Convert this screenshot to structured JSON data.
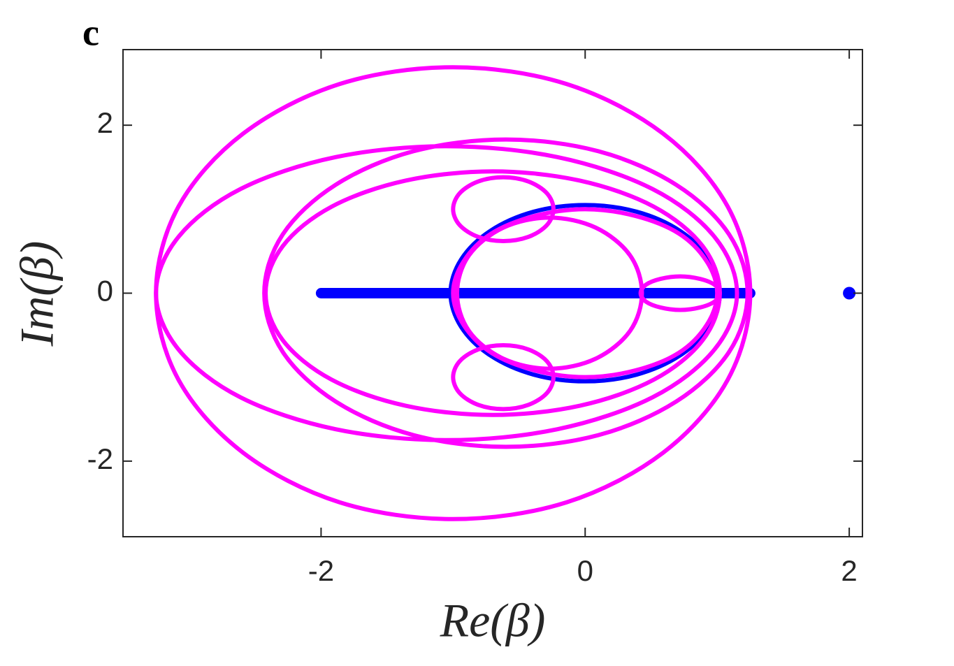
{
  "chart_data": {
    "type": "line",
    "panel_label": "c",
    "x_label": "Re(β)",
    "y_label": "Im(β)",
    "xlim": [
      -3.5,
      2.1
    ],
    "ylim": [
      -2.9,
      2.9
    ],
    "xticks": [
      -2,
      0,
      2
    ],
    "yticks": [
      -2,
      0,
      2
    ],
    "series": [
      {
        "color": "#0000ff",
        "mode": "line",
        "x": [
          -2,
          1.25
        ],
        "values": [
          0,
          0
        ]
      },
      {
        "color": "#0000ff",
        "mode": "line",
        "closed": true,
        "x": [
          1.02,
          0.94,
          0.72,
          0.39,
          0,
          -0.39,
          -0.72,
          -0.94,
          -1.02,
          -0.94,
          -0.72,
          -0.39,
          0,
          0.39,
          0.72,
          0.94
        ],
        "values": [
          0,
          0.4,
          0.74,
          0.97,
          1.05,
          0.97,
          0.74,
          0.4,
          0,
          -0.4,
          -0.74,
          -0.97,
          -1.05,
          -0.97,
          -0.74,
          -0.4
        ]
      },
      {
        "color": "#0000ff",
        "mode": "markers",
        "x": [
          2
        ],
        "values": [
          0
        ]
      },
      {
        "color": "#ff00ff",
        "mode": "line",
        "closed": true,
        "x": [
          1.25,
          1.08,
          0.59,
          -0.14,
          -1,
          -1.86,
          -2.59,
          -3.08,
          -3.25,
          -3.08,
          -2.59,
          -1.86,
          -1,
          -0.14,
          0.59,
          1.08
        ],
        "values": [
          0,
          1.03,
          1.9,
          2.49,
          2.69,
          2.49,
          1.9,
          1.03,
          0,
          -1.03,
          -1.9,
          -2.49,
          -2.69,
          -2.49,
          -1.9,
          -1.03
        ]
      },
      {
        "color": "#ff00ff",
        "mode": "line",
        "closed": true,
        "x": [
          1.15,
          0.98,
          0.51,
          -0.21,
          -1.05,
          -1.89,
          -2.61,
          -3.08,
          -3.25,
          -3.08,
          -2.61,
          -1.89,
          -1.05,
          -0.21,
          0.51,
          0.98
        ],
        "values": [
          0,
          0.67,
          1.24,
          1.62,
          1.75,
          1.62,
          1.24,
          0.67,
          0,
          -0.67,
          -1.24,
          -1.62,
          -1.75,
          -1.62,
          -1.24,
          -0.67
        ]
      },
      {
        "color": "#ff00ff",
        "mode": "line",
        "closed": true,
        "x": [
          1.23,
          1.09,
          0.69,
          0.1,
          -0.6,
          -1.3,
          -1.89,
          -2.29,
          -2.43,
          -2.29,
          -1.89,
          -1.3,
          -0.6,
          0.1,
          0.69,
          1.09
        ],
        "values": [
          0,
          0.7,
          1.29,
          1.69,
          1.83,
          1.69,
          1.29,
          0.7,
          0,
          -0.7,
          -1.29,
          -1.69,
          -1.83,
          -1.69,
          -1.29,
          -0.7
        ]
      },
      {
        "color": "#ff00ff",
        "mode": "line",
        "closed": true,
        "x": [
          1.02,
          0.89,
          0.52,
          -0.04,
          -0.7,
          -1.36,
          -1.92,
          -2.29,
          -2.42,
          -2.29,
          -1.92,
          -1.36,
          -0.7,
          -0.04,
          0.52,
          0.89
        ],
        "values": [
          0,
          0.56,
          1.03,
          1.34,
          1.45,
          1.34,
          1.03,
          0.56,
          0,
          -0.56,
          -1.03,
          -1.34,
          -1.45,
          -1.34,
          -1.03,
          -0.56
        ]
      },
      {
        "color": "#ff00ff",
        "mode": "line",
        "closed": true,
        "x": [
          1,
          0.92,
          0.71,
          0.38,
          0,
          -0.38,
          -0.71,
          -0.92,
          -1,
          -0.92,
          -0.71,
          -0.38,
          0,
          0.38,
          0.71,
          0.92
        ],
        "values": [
          0,
          0.38,
          0.71,
          0.92,
          1,
          0.92,
          0.71,
          0.38,
          0,
          -0.38,
          -0.71,
          -0.92,
          -1,
          -0.92,
          -0.71,
          -0.38
        ]
      },
      {
        "color": "#ff00ff",
        "mode": "line",
        "closed": true,
        "x": [
          0.43,
          0.34,
          0.08,
          -0.27,
          -0.62,
          -0.88,
          -0.97,
          -0.88,
          -0.62,
          -0.27,
          0.08,
          0.34
        ],
        "values": [
          0,
          0.45,
          0.78,
          0.9,
          0.78,
          0.45,
          0,
          -0.45,
          -0.78,
          -0.9,
          -0.78,
          -0.45
        ]
      },
      {
        "color": "#ff00ff",
        "mode": "line",
        "closed": true,
        "x": [
          -0.24,
          -0.29,
          -0.43,
          -0.62,
          -0.81,
          -0.95,
          -1.0,
          -0.95,
          -0.81,
          -0.62,
          -0.43,
          -0.29
        ],
        "values": [
          1.0,
          1.19,
          1.33,
          1.38,
          1.33,
          1.19,
          1.0,
          0.81,
          0.67,
          0.62,
          0.67,
          0.81
        ]
      },
      {
        "color": "#ff00ff",
        "mode": "line",
        "closed": true,
        "x": [
          -0.24,
          -0.29,
          -0.43,
          -0.62,
          -0.81,
          -0.95,
          -1.0,
          -0.95,
          -0.81,
          -0.62,
          -0.43,
          -0.29
        ],
        "values": [
          -1.0,
          -0.81,
          -0.67,
          -0.62,
          -0.67,
          -0.81,
          -1.0,
          -1.19,
          -1.33,
          -1.38,
          -1.33,
          -1.19
        ]
      },
      {
        "color": "#ff00ff",
        "mode": "line",
        "closed": true,
        "x": [
          1.02,
          0.98,
          0.87,
          0.72,
          0.57,
          0.46,
          0.42,
          0.46,
          0.57,
          0.72,
          0.87,
          0.98
        ],
        "values": [
          0,
          0.1,
          0.17,
          0.2,
          0.17,
          0.1,
          0,
          -0.1,
          -0.17,
          -0.2,
          -0.17,
          -0.1
        ]
      }
    ]
  }
}
